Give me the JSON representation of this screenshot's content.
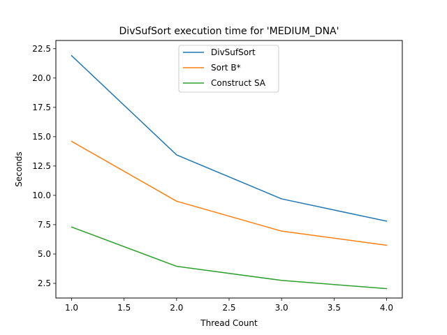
{
  "chart_data": {
    "type": "line",
    "title": "DivSufSort execution time for 'MEDIUM_DNA'",
    "xlabel": "Thread Count",
    "ylabel": "Seconds",
    "x": [
      1.0,
      2.0,
      3.0,
      4.0
    ],
    "xlim": [
      0.85,
      4.15
    ],
    "ylim": [
      1.25,
      23.2
    ],
    "xticks": [
      1.0,
      1.5,
      2.0,
      2.5,
      3.0,
      3.5,
      4.0
    ],
    "xtick_labels": [
      "1.0",
      "1.5",
      "2.0",
      "2.5",
      "3.0",
      "3.5",
      "4.0"
    ],
    "yticks": [
      2.5,
      5.0,
      7.5,
      10.0,
      12.5,
      15.0,
      17.5,
      20.0,
      22.5
    ],
    "ytick_labels": [
      "2.5",
      "5.0",
      "7.5",
      "10.0",
      "12.5",
      "15.0",
      "17.5",
      "20.0",
      "22.5"
    ],
    "grid": false,
    "legend_position": "upper-center",
    "series": [
      {
        "name": "DivSufSort",
        "color": "#1f77b4",
        "values": [
          21.9,
          13.45,
          9.7,
          7.8
        ]
      },
      {
        "name": "Sort B*",
        "color": "#ff7f0e",
        "values": [
          14.6,
          9.5,
          6.95,
          5.75
        ]
      },
      {
        "name": "Construct SA",
        "color": "#2ca02c",
        "values": [
          7.3,
          3.95,
          2.75,
          2.05
        ]
      }
    ]
  }
}
